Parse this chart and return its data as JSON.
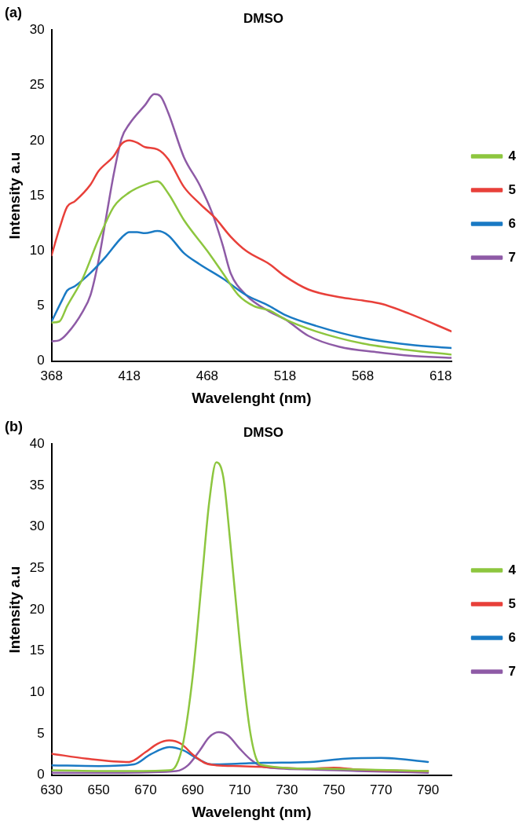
{
  "chart_data": [
    {
      "type": "line",
      "title": "DMSO",
      "xlabel": "Wavelenght (nm)",
      "ylabel": "Intensity a.u",
      "annotations": [
        "(a)"
      ],
      "xlim": [
        368,
        625
      ],
      "xticks": [
        368,
        418,
        468,
        518,
        568,
        618
      ],
      "ylim": [
        0,
        30
      ],
      "yticks": [
        0,
        5,
        10,
        15,
        20,
        25,
        30
      ],
      "grid": false,
      "legend": "right",
      "marker": "none",
      "line_style": "solid",
      "series": [
        {
          "name": "4",
          "color": "#8dc63f",
          "x": [
            368,
            373,
            378,
            388,
            398,
            408,
            418,
            428,
            436,
            443,
            453,
            468,
            478,
            488,
            498,
            508,
            518,
            538,
            568,
            598,
            625
          ],
          "values": [
            3.5,
            3.6,
            5,
            7.5,
            11,
            14,
            15.3,
            16,
            16.3,
            15.2,
            12.8,
            10,
            8,
            6,
            5,
            4.6,
            3.8,
            2.7,
            1.6,
            1.0,
            0.6
          ]
        },
        {
          "name": "5",
          "color": "#e8403a",
          "x": [
            368,
            373,
            378,
            383,
            393,
            398,
            408,
            413,
            418,
            423,
            428,
            436,
            443,
            453,
            463,
            473,
            483,
            493,
            508,
            518,
            533,
            553,
            568,
            580,
            598,
            625
          ],
          "values": [
            9.6,
            12,
            14,
            14.5,
            16,
            17.2,
            18.6,
            19.7,
            20,
            19.8,
            19.4,
            19.2,
            18.3,
            15.8,
            14.3,
            13,
            11.3,
            10,
            8.8,
            7.7,
            6.5,
            5.8,
            5.5,
            5.2,
            4.3,
            2.7
          ]
        },
        {
          "name": "6",
          "color": "#1a7ac4",
          "x": [
            368,
            375,
            378,
            383,
            393,
            403,
            413,
            418,
            423,
            428,
            436,
            443,
            453,
            463,
            478,
            493,
            508,
            518,
            538,
            568,
            598,
            625
          ],
          "values": [
            3.6,
            5.6,
            6.4,
            6.8,
            8,
            9.5,
            11.2,
            11.7,
            11.7,
            11.6,
            11.8,
            11.4,
            9.8,
            8.8,
            7.5,
            6,
            5,
            4.2,
            3.2,
            2.1,
            1.5,
            1.2
          ]
        },
        {
          "name": "7",
          "color": "#8e5ba6",
          "x": [
            368,
            373,
            378,
            388,
            393,
            398,
            403,
            408,
            413,
            418,
            428,
            434,
            438,
            443,
            453,
            463,
            471,
            478,
            483,
            493,
            508,
            518,
            533,
            553,
            578,
            598,
            625
          ],
          "values": [
            1.8,
            1.9,
            2.5,
            4.5,
            6,
            9,
            13,
            17,
            20.2,
            21.5,
            23.2,
            24.2,
            24,
            22.5,
            18.5,
            16,
            13.5,
            10.5,
            8,
            6,
            4.5,
            3.8,
            2.3,
            1.3,
            0.8,
            0.5,
            0.3
          ]
        }
      ]
    },
    {
      "type": "line",
      "title": "DMSO",
      "xlabel": "Wavelenght (nm)",
      "ylabel": "Intensity a.u",
      "annotations": [
        "(b)"
      ],
      "xlim": [
        630,
        800
      ],
      "xticks": [
        630,
        650,
        670,
        690,
        710,
        730,
        750,
        770,
        790
      ],
      "ylim": [
        0,
        40
      ],
      "yticks": [
        0,
        5,
        10,
        15,
        20,
        25,
        30,
        35,
        40
      ],
      "grid": false,
      "legend": "right",
      "marker": "none",
      "line_style": "solid",
      "series": [
        {
          "name": "4",
          "color": "#8dc63f",
          "x": [
            630,
            660,
            680,
            683,
            686,
            690,
            694,
            697,
            700,
            703,
            706,
            710,
            714,
            717,
            720,
            740,
            760,
            790
          ],
          "values": [
            0.6,
            0.5,
            0.6,
            1.2,
            4,
            12,
            24,
            33,
            37.8,
            36,
            28,
            16,
            6,
            2,
            1.2,
            0.8,
            0.7,
            0.5
          ]
        },
        {
          "name": "5",
          "color": "#e8403a",
          "x": [
            630,
            645,
            663,
            670,
            675,
            680,
            685,
            690,
            695,
            700,
            710,
            720,
            740,
            750,
            760,
            790
          ],
          "values": [
            2.6,
            2,
            1.6,
            2.8,
            3.8,
            4.2,
            3.8,
            2.5,
            1.5,
            1.2,
            1.1,
            1,
            0.8,
            0.9,
            0.7,
            0.5
          ]
        },
        {
          "name": "6",
          "color": "#1a7ac4",
          "x": [
            630,
            650,
            665,
            672,
            680,
            686,
            692,
            698,
            710,
            720,
            740,
            755,
            770,
            790
          ],
          "values": [
            1.2,
            1.1,
            1.3,
            2.5,
            3.4,
            3,
            2,
            1.3,
            1.4,
            1.5,
            1.6,
            2,
            2.1,
            1.6
          ]
        },
        {
          "name": "7",
          "color": "#8e5ba6",
          "x": [
            630,
            660,
            683,
            688,
            693,
            697,
            701,
            705,
            710,
            715,
            720,
            740,
            760,
            790
          ],
          "values": [
            0.3,
            0.3,
            0.5,
            1.2,
            3,
            4.6,
            5.2,
            4.8,
            3.2,
            1.8,
            1,
            0.7,
            0.5,
            0.3
          ]
        }
      ]
    }
  ]
}
